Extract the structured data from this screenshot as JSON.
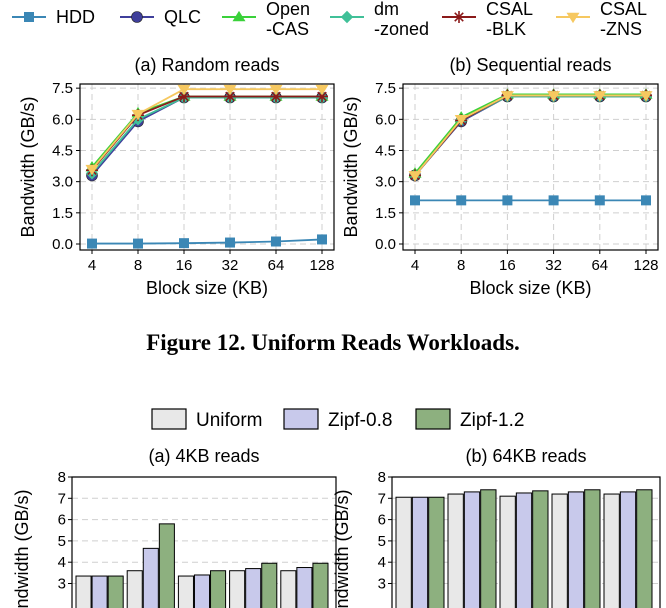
{
  "line_legend": [
    {
      "label": [
        "HDD"
      ],
      "color": "#3b87b5",
      "marker": "square"
    },
    {
      "label": [
        "QLC"
      ],
      "color": "#3f3f9b",
      "marker": "circle"
    },
    {
      "label": [
        "Open",
        "-CAS"
      ],
      "color": "#3ad13a",
      "marker": "triangle"
    },
    {
      "label": [
        "dm",
        "-zoned"
      ],
      "color": "#40c098",
      "marker": "diamond"
    },
    {
      "label": [
        "CSAL",
        "-BLK"
      ],
      "color": "#8b1a1a",
      "marker": "star"
    },
    {
      "label": [
        "CSAL",
        "-ZNS"
      ],
      "color": "#f6c860",
      "marker": "triangle-down"
    }
  ],
  "figure_caption": "Figure 12.  Uniform Reads Workloads.",
  "bar_legend": [
    {
      "label": "Uniform",
      "color": "#e8e8e8"
    },
    {
      "label": "Zipf-0.8",
      "color": "#c8c9eb"
    },
    {
      "label": "Zipf-1.2",
      "color": "#8db07f"
    }
  ],
  "chart_data": [
    {
      "type": "line",
      "title": "(a) Random reads",
      "xlabel": "Block size (KB)",
      "ylabel": "Bandwidth (GB/s)",
      "x": [
        "4",
        "8",
        "16",
        "32",
        "64",
        "128"
      ],
      "yticks": [
        "0.0",
        "1.5",
        "3.0",
        "4.5",
        "6.0",
        "7.5"
      ],
      "ylim": [
        0,
        7.7
      ],
      "grid": true,
      "series": [
        {
          "name": "HDD",
          "values": [
            0.02,
            0.02,
            0.04,
            0.07,
            0.12,
            0.22
          ]
        },
        {
          "name": "QLC",
          "values": [
            3.3,
            5.9,
            7.05,
            7.05,
            7.05,
            7.05
          ]
        },
        {
          "name": "Open-CAS",
          "values": [
            3.7,
            6.3,
            7.1,
            7.1,
            7.1,
            7.1
          ]
        },
        {
          "name": "dm-zoned",
          "values": [
            3.4,
            6.0,
            7.05,
            7.05,
            7.05,
            7.05
          ]
        },
        {
          "name": "CSAL-BLK",
          "values": [
            3.55,
            6.2,
            7.1,
            7.1,
            7.1,
            7.1
          ]
        },
        {
          "name": "CSAL-ZNS",
          "values": [
            3.6,
            6.25,
            7.45,
            7.45,
            7.45,
            7.45
          ]
        }
      ]
    },
    {
      "type": "line",
      "title": "(b) Sequential reads",
      "xlabel": "Block size (KB)",
      "ylabel": "Bandwidth (GB/s)",
      "x": [
        "4",
        "8",
        "16",
        "32",
        "64",
        "128"
      ],
      "yticks": [
        "0.0",
        "1.5",
        "3.0",
        "4.5",
        "6.0",
        "7.5"
      ],
      "ylim": [
        0,
        7.7
      ],
      "grid": true,
      "series": [
        {
          "name": "HDD",
          "values": [
            2.1,
            2.1,
            2.1,
            2.1,
            2.1,
            2.1
          ]
        },
        {
          "name": "QLC",
          "values": [
            3.3,
            5.9,
            7.1,
            7.1,
            7.1,
            7.1
          ]
        },
        {
          "name": "Open-CAS",
          "values": [
            3.4,
            6.1,
            7.2,
            7.2,
            7.2,
            7.2
          ]
        },
        {
          "name": "dm-zoned",
          "values": [
            3.3,
            5.95,
            7.1,
            7.1,
            7.1,
            7.1
          ]
        },
        {
          "name": "CSAL-BLK",
          "values": [
            3.3,
            5.95,
            7.15,
            7.15,
            7.15,
            7.15
          ]
        },
        {
          "name": "CSAL-ZNS",
          "values": [
            3.3,
            6.0,
            7.15,
            7.15,
            7.15,
            7.15
          ]
        }
      ]
    },
    {
      "type": "bar",
      "title": "(a) 4KB reads",
      "ylabel": "Bandwidth (GB/s)",
      "yticks": [
        "3",
        "4",
        "5",
        "6",
        "7",
        "8"
      ],
      "ylim": [
        2.5,
        8
      ],
      "grid": true,
      "series": [
        {
          "name": "Uniform",
          "values": [
            3.35,
            3.6,
            3.35,
            3.6,
            3.6
          ]
        },
        {
          "name": "Zipf-0.8",
          "values": [
            3.35,
            4.65,
            3.4,
            3.7,
            3.75
          ]
        },
        {
          "name": "Zipf-1.2",
          "values": [
            3.35,
            5.8,
            3.6,
            3.95,
            3.95
          ]
        }
      ]
    },
    {
      "type": "bar",
      "title": "(b) 64KB reads",
      "ylabel": "Bandwidth (GB/s)",
      "yticks": [
        "3",
        "4",
        "5",
        "6",
        "7",
        "8"
      ],
      "ylim": [
        2.5,
        8
      ],
      "grid": true,
      "series": [
        {
          "name": "Uniform",
          "values": [
            7.05,
            7.2,
            7.1,
            7.2,
            7.2
          ]
        },
        {
          "name": "Zipf-0.8",
          "values": [
            7.05,
            7.3,
            7.25,
            7.3,
            7.3
          ]
        },
        {
          "name": "Zipf-1.2",
          "values": [
            7.05,
            7.4,
            7.35,
            7.4,
            7.4
          ]
        }
      ]
    }
  ]
}
